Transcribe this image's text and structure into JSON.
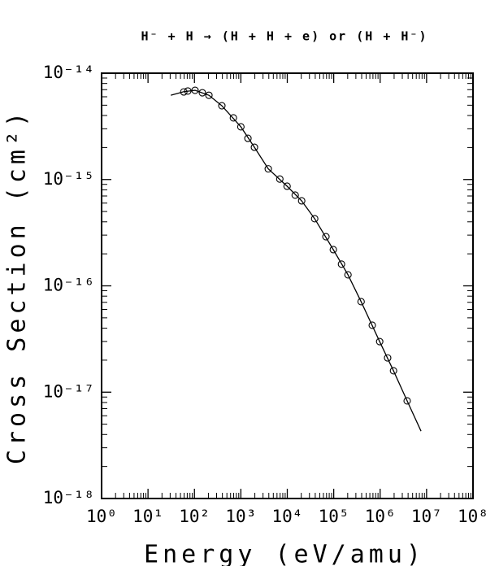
{
  "chart_data": {
    "type": "scatter",
    "title": "H⁻ + H → (H + H + e) or (H + H⁻)",
    "x_label": "Energy (eV/amu)",
    "y_label": "Cross Section (cm²)",
    "x_log": true,
    "y_log": true,
    "minor_ticks": true,
    "color": "#000000",
    "xlim": [
      1,
      100000000
    ],
    "ylim": [
      1e-18,
      1e-14
    ],
    "xticks": [
      {
        "value": 1,
        "label": "10⁰"
      },
      {
        "value": 10,
        "label": "10¹"
      },
      {
        "value": 100,
        "label": "10²"
      },
      {
        "value": 1000,
        "label": "10³"
      },
      {
        "value": 10000,
        "label": "10⁴"
      },
      {
        "value": 100000,
        "label": "10⁵"
      },
      {
        "value": 1000000,
        "label": "10⁶"
      },
      {
        "value": 10000000,
        "label": "10⁷"
      },
      {
        "value": 100000000,
        "label": "10⁸"
      }
    ],
    "yticks": [
      {
        "value": 1e-18,
        "label": "10⁻¹⁸"
      },
      {
        "value": 1e-17,
        "label": "10⁻¹⁷"
      },
      {
        "value": 1e-16,
        "label": "10⁻¹⁶"
      },
      {
        "value": 1e-15,
        "label": "10⁻¹⁵"
      },
      {
        "value": 1e-14,
        "label": "10⁻¹⁴"
      }
    ],
    "series": [
      {
        "style": "markers",
        "x": [
          59,
          72,
          103,
          148,
          205,
          390,
          690,
          1000,
          1420,
          1960,
          3890,
          6900,
          9900,
          14800,
          20400,
          38900,
          68000,
          98000,
          147000,
          203000,
          389000,
          676000,
          977000,
          1450000,
          1940000,
          3820000
        ],
        "values": [
          6.67e-15,
          6.8e-15,
          6.9e-15,
          6.55e-15,
          6.2e-15,
          4.94e-15,
          3.8e-15,
          3.13e-15,
          2.44e-15,
          2.01e-15,
          1.26e-15,
          1.01e-15,
          8.65e-16,
          7.13e-16,
          6.3e-16,
          4.28e-16,
          2.9e-16,
          2.19e-16,
          1.6e-16,
          1.27e-16,
          7.1e-17,
          4.26e-17,
          2.99e-17,
          2.1e-17,
          1.59e-17,
          8.28e-18
        ]
      },
      {
        "style": "line",
        "x": [
          31,
          59,
          103,
          205,
          390,
          1000,
          1960,
          3890,
          9900,
          20400,
          38900,
          98000,
          203000,
          389000,
          977000,
          1940000,
          3820000,
          7600000
        ],
        "values": [
          6.2e-15,
          6.7e-15,
          6.9e-15,
          6.2e-15,
          4.94e-15,
          3.13e-15,
          2.01e-15,
          1.26e-15,
          8.65e-16,
          6.3e-16,
          4.28e-16,
          2.19e-16,
          1.27e-16,
          7.1e-17,
          2.99e-17,
          1.59e-17,
          8.28e-18,
          4.3e-18
        ]
      }
    ]
  }
}
